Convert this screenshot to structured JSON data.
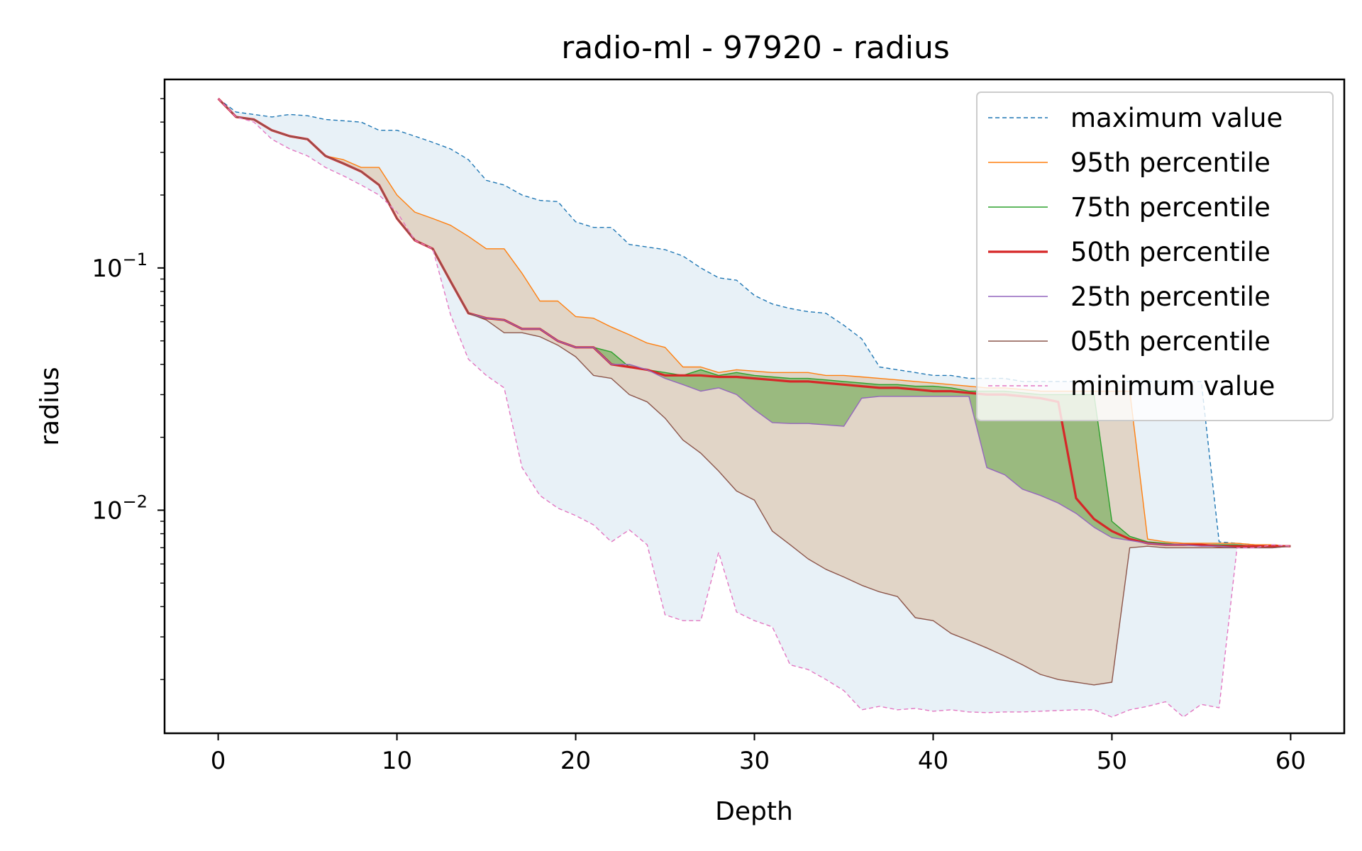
{
  "chart_data": {
    "type": "line",
    "title": "radio-ml - 97920 - radius",
    "xlabel": "Depth",
    "ylabel": "radius",
    "xscale": "linear",
    "yscale": "log",
    "xlim": [
      -3,
      63
    ],
    "ylim": [
      0.0012,
      0.6
    ],
    "xticks": [
      0,
      10,
      20,
      30,
      40,
      50,
      60
    ],
    "xtick_labels": [
      "0",
      "10",
      "20",
      "30",
      "40",
      "50",
      "60"
    ],
    "yticks": [
      0.1,
      0.01
    ],
    "ytick_labels": [
      {
        "base": "10",
        "exp": "−1"
      },
      {
        "base": "10",
        "exp": "−2"
      }
    ],
    "legend_position": "upper right",
    "x": [
      0,
      1,
      2,
      3,
      4,
      5,
      6,
      7,
      8,
      9,
      10,
      11,
      12,
      13,
      14,
      15,
      16,
      17,
      18,
      19,
      20,
      21,
      22,
      23,
      24,
      25,
      26,
      27,
      28,
      29,
      30,
      31,
      32,
      33,
      34,
      35,
      36,
      37,
      38,
      39,
      40,
      41,
      42,
      43,
      44,
      45,
      46,
      47,
      48,
      49,
      50,
      51,
      52,
      53,
      54,
      55,
      56,
      57,
      58,
      59,
      60
    ],
    "series": [
      {
        "name": "maximum value",
        "color": "#1f77b4",
        "style": "dashed",
        "values": [
          0.5,
          0.44,
          0.43,
          0.42,
          0.43,
          0.425,
          0.41,
          0.405,
          0.4,
          0.37,
          0.37,
          0.35,
          0.33,
          0.31,
          0.28,
          0.23,
          0.22,
          0.2,
          0.19,
          0.188,
          0.155,
          0.147,
          0.147,
          0.125,
          0.122,
          0.119,
          0.112,
          0.1,
          0.091,
          0.089,
          0.077,
          0.071,
          0.068,
          0.066,
          0.065,
          0.058,
          0.051,
          0.039,
          0.038,
          0.037,
          0.036,
          0.036,
          0.035,
          0.035,
          0.035,
          0.034,
          0.034,
          0.034,
          0.034,
          0.034,
          0.034,
          0.034,
          0.034,
          0.034,
          0.034,
          0.034,
          0.0074,
          0.0073,
          0.0072,
          0.0072,
          0.0071
        ]
      },
      {
        "name": "95th percentile",
        "color": "#ff7f0e",
        "style": "solid",
        "values": [
          0.5,
          0.42,
          0.41,
          0.37,
          0.35,
          0.34,
          0.29,
          0.28,
          0.26,
          0.26,
          0.2,
          0.17,
          0.16,
          0.15,
          0.135,
          0.12,
          0.12,
          0.095,
          0.073,
          0.073,
          0.063,
          0.062,
          0.057,
          0.053,
          0.049,
          0.047,
          0.039,
          0.039,
          0.037,
          0.038,
          0.0375,
          0.037,
          0.037,
          0.037,
          0.036,
          0.036,
          0.0355,
          0.035,
          0.0345,
          0.034,
          0.0335,
          0.033,
          0.0325,
          0.032,
          0.032,
          0.0315,
          0.031,
          0.031,
          0.031,
          0.031,
          0.031,
          0.031,
          0.0076,
          0.0074,
          0.0073,
          0.0073,
          0.0073,
          0.0073,
          0.0072,
          0.0072,
          0.0071
        ]
      },
      {
        "name": "75th percentile",
        "color": "#2ca02c",
        "style": "solid",
        "values": [
          0.5,
          0.42,
          0.41,
          0.37,
          0.35,
          0.34,
          0.29,
          0.27,
          0.25,
          0.22,
          0.16,
          0.13,
          0.12,
          0.088,
          0.065,
          0.062,
          0.061,
          0.056,
          0.056,
          0.05,
          0.047,
          0.047,
          0.045,
          0.039,
          0.038,
          0.037,
          0.036,
          0.038,
          0.036,
          0.037,
          0.036,
          0.0355,
          0.035,
          0.035,
          0.0345,
          0.034,
          0.0335,
          0.033,
          0.033,
          0.0325,
          0.0325,
          0.032,
          0.031,
          0.031,
          0.031,
          0.0305,
          0.03,
          0.03,
          0.03,
          0.03,
          0.009,
          0.0078,
          0.0074,
          0.0073,
          0.0072,
          0.0072,
          0.0072,
          0.0072,
          0.0071,
          0.0071,
          0.0071
        ]
      },
      {
        "name": "50th percentile",
        "color": "#d62728",
        "style": "solid",
        "values": [
          0.5,
          0.42,
          0.41,
          0.37,
          0.35,
          0.34,
          0.29,
          0.27,
          0.25,
          0.22,
          0.16,
          0.13,
          0.12,
          0.088,
          0.065,
          0.062,
          0.061,
          0.056,
          0.056,
          0.05,
          0.047,
          0.047,
          0.04,
          0.039,
          0.038,
          0.036,
          0.036,
          0.036,
          0.0355,
          0.0355,
          0.035,
          0.0345,
          0.034,
          0.034,
          0.0335,
          0.033,
          0.0325,
          0.032,
          0.032,
          0.0315,
          0.031,
          0.031,
          0.0305,
          0.03,
          0.03,
          0.0295,
          0.029,
          0.028,
          0.0112,
          0.0092,
          0.0082,
          0.0076,
          0.0073,
          0.0072,
          0.0072,
          0.0072,
          0.0071,
          0.0071,
          0.0071,
          0.0071,
          0.0071
        ]
      },
      {
        "name": "25th percentile",
        "color": "#9467bd",
        "style": "solid",
        "values": [
          0.5,
          0.42,
          0.41,
          0.37,
          0.35,
          0.34,
          0.29,
          0.27,
          0.25,
          0.22,
          0.16,
          0.13,
          0.12,
          0.088,
          0.065,
          0.062,
          0.061,
          0.056,
          0.056,
          0.05,
          0.047,
          0.047,
          0.04,
          0.04,
          0.038,
          0.035,
          0.033,
          0.031,
          0.032,
          0.03,
          0.026,
          0.023,
          0.0228,
          0.0228,
          0.0225,
          0.0222,
          0.029,
          0.0295,
          0.0295,
          0.0295,
          0.0295,
          0.0295,
          0.0295,
          0.015,
          0.014,
          0.0122,
          0.0115,
          0.0107,
          0.0097,
          0.0085,
          0.0077,
          0.0075,
          0.0073,
          0.0072,
          0.0072,
          0.0071,
          0.0071,
          0.007,
          0.007,
          0.007,
          0.0071
        ]
      },
      {
        "name": "05th percentile",
        "color": "#8c564b",
        "style": "solid",
        "values": [
          0.5,
          0.42,
          0.41,
          0.37,
          0.35,
          0.34,
          0.29,
          0.27,
          0.25,
          0.22,
          0.16,
          0.13,
          0.12,
          0.088,
          0.065,
          0.061,
          0.054,
          0.054,
          0.052,
          0.048,
          0.043,
          0.036,
          0.035,
          0.03,
          0.028,
          0.024,
          0.0195,
          0.0172,
          0.0145,
          0.012,
          0.011,
          0.0082,
          0.0072,
          0.0063,
          0.0057,
          0.0053,
          0.0049,
          0.0046,
          0.0044,
          0.0036,
          0.0035,
          0.0031,
          0.0029,
          0.0027,
          0.0025,
          0.0023,
          0.0021,
          0.002,
          0.00195,
          0.0019,
          0.00195,
          0.007,
          0.0071,
          0.007,
          0.007,
          0.007,
          0.007,
          0.007,
          0.007,
          0.007,
          0.0071
        ]
      },
      {
        "name": "minimum value",
        "color": "#e377c2",
        "style": "dashed",
        "values": [
          0.5,
          0.42,
          0.4,
          0.34,
          0.31,
          0.29,
          0.26,
          0.24,
          0.22,
          0.2,
          0.17,
          0.13,
          0.12,
          0.064,
          0.042,
          0.036,
          0.032,
          0.015,
          0.0115,
          0.0102,
          0.0095,
          0.0087,
          0.0074,
          0.0083,
          0.0072,
          0.0037,
          0.0035,
          0.0035,
          0.0067,
          0.0038,
          0.0035,
          0.0033,
          0.0023,
          0.0022,
          0.002,
          0.0018,
          0.0015,
          0.00155,
          0.0015,
          0.00152,
          0.00148,
          0.0015,
          0.00147,
          0.00146,
          0.00147,
          0.00147,
          0.00148,
          0.00149,
          0.0015,
          0.0015,
          0.0014,
          0.0015,
          0.00155,
          0.00162,
          0.0014,
          0.00158,
          0.00153,
          0.007,
          0.007,
          0.0072,
          0.0071
        ]
      }
    ],
    "bands": [
      {
        "between": [
          "maximum value",
          "minimum value"
        ],
        "color": "#1f77b4",
        "opacity": 0.1
      },
      {
        "between": [
          "95th percentile",
          "05th percentile"
        ],
        "color": "#d9b38c",
        "opacity": 0.45
      },
      {
        "between": [
          "75th percentile",
          "25th percentile"
        ],
        "color": "#6aa84f",
        "opacity": 0.6
      }
    ]
  }
}
